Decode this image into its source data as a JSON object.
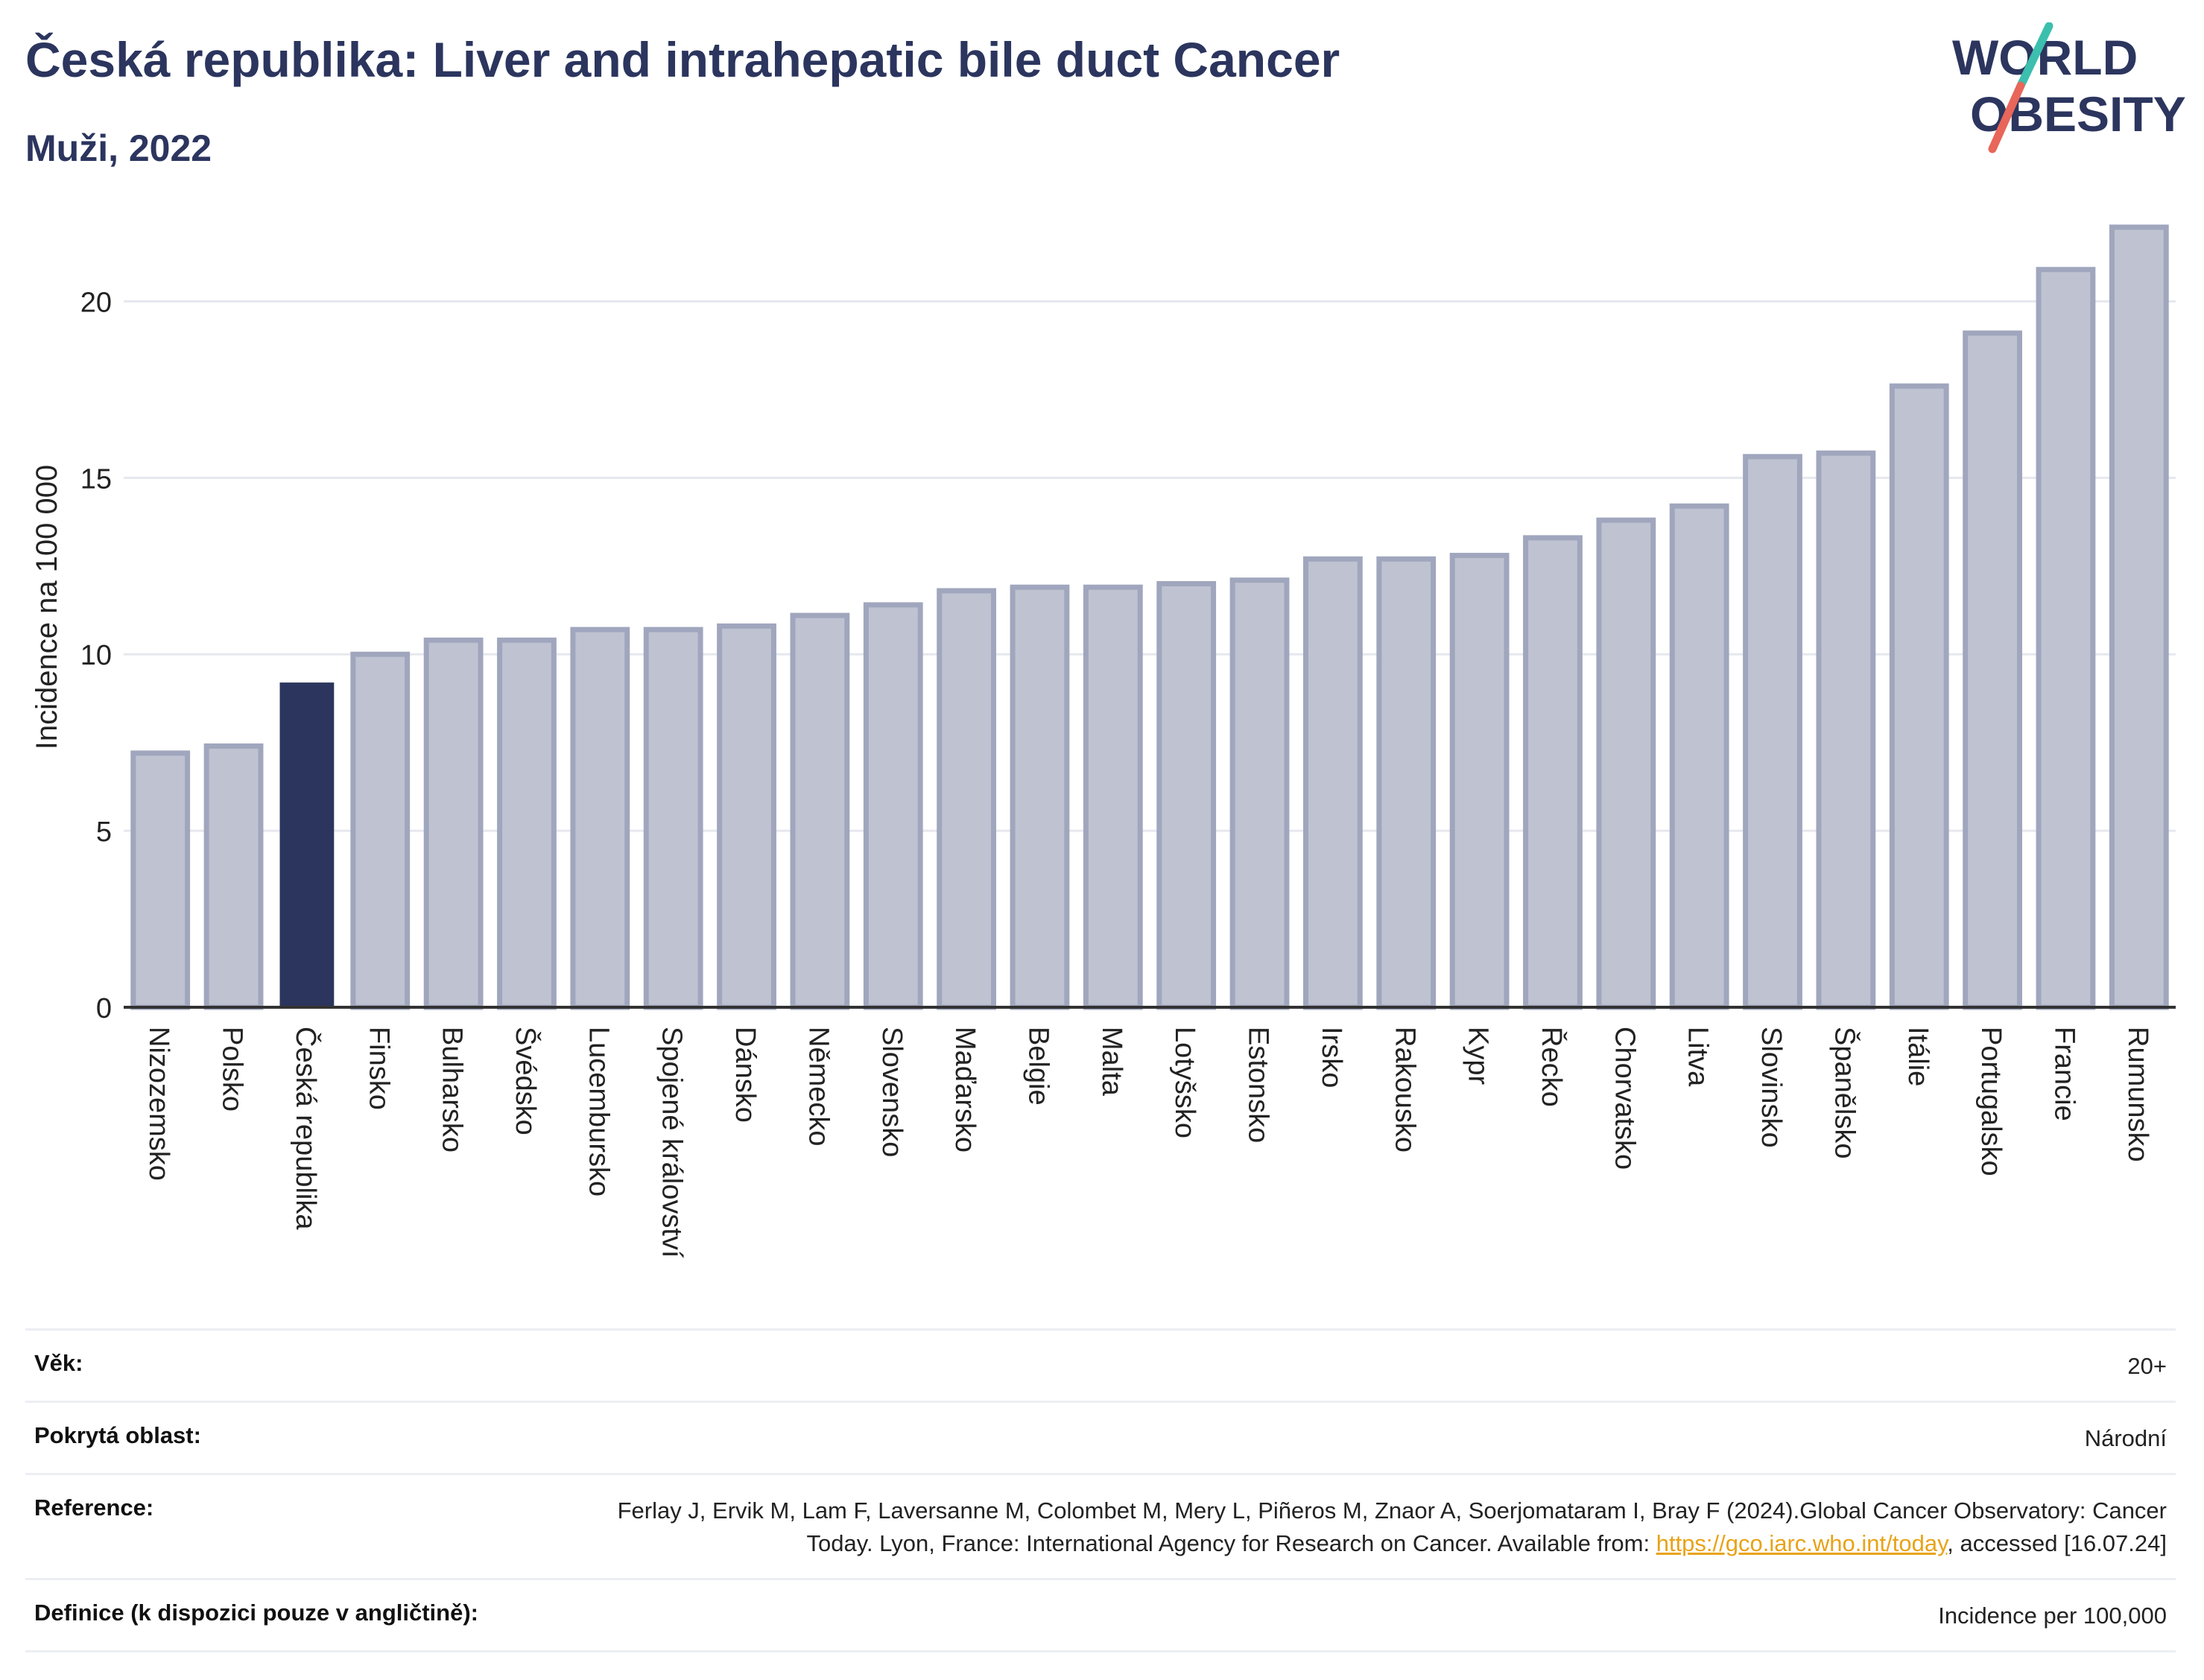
{
  "header": {
    "title": "Česká republika: Liver and intrahepatic bile duct Cancer",
    "subtitle": "Muži, 2022"
  },
  "logo": {
    "line1": "WORLD",
    "line2": "OBESITY",
    "colors": {
      "text": "#2b355e",
      "slash_top": "#3cbfae",
      "slash_bottom": "#e8665a"
    }
  },
  "colors": {
    "bar": "#bfc3d1",
    "bar_border": "#a0a6bd",
    "highlight": "#2b355e",
    "grid": "#e6e8ee",
    "axis": "#333333"
  },
  "chart_data": {
    "type": "bar",
    "ylabel": "Incidence na 100 000",
    "xlabel": "",
    "ylim": [
      0,
      22.5
    ],
    "yticks": [
      0,
      5,
      10,
      15,
      20
    ],
    "grid": true,
    "highlight": "Česká republika",
    "categories": [
      "Nizozemsko",
      "Polsko",
      "Česká republika",
      "Finsko",
      "Bulharsko",
      "Švédsko",
      "Lucembursko",
      "Spojené království",
      "Dánsko",
      "Německo",
      "Slovensko",
      "Maďarsko",
      "Belgie",
      "Malta",
      "Lotyšsko",
      "Estonsko",
      "Irsko",
      "Rakousko",
      "Kypr",
      "Řecko",
      "Chorvatsko",
      "Litva",
      "Slovinsko",
      "Španělsko",
      "Itálie",
      "Portugalsko",
      "Francie",
      "Rumunsko"
    ],
    "values": [
      7.2,
      7.4,
      9.2,
      10.0,
      10.4,
      10.4,
      10.7,
      10.7,
      10.8,
      11.1,
      11.4,
      11.8,
      11.9,
      11.9,
      12.0,
      12.1,
      12.7,
      12.7,
      12.8,
      13.3,
      13.8,
      14.2,
      15.6,
      15.7,
      17.6,
      19.1,
      20.9,
      22.1
    ]
  },
  "meta": {
    "age_label": "Věk:",
    "age_value": "20+",
    "area_label": "Pokrytá oblast:",
    "area_value": "Národní",
    "ref_label": "Reference:",
    "ref_text_1": "Ferlay J, Ervik M, Lam F, Laversanne M, Colombet M, Mery L, Piñeros M, Znaor A, Soerjomataram I, Bray F (2024).Global Cancer Observatory: Cancer Today. Lyon, France: International Agency for Research on Cancer. Available from: ",
    "ref_link": "https://gco.iarc.who.int/today",
    "ref_text_2": ", accessed [16.07.24]",
    "def_label": "Definice (k dispozici pouze v angličtině):",
    "def_value": "Incidence per 100,000"
  }
}
